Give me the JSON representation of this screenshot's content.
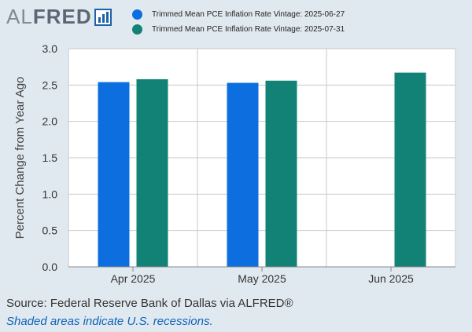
{
  "logo": {
    "text_light": "AL",
    "text_bold": "FRED",
    "icon": "bar-chart-icon"
  },
  "chart_data": {
    "type": "bar",
    "categories": [
      "Apr 2025",
      "May 2025",
      "Jun 2025"
    ],
    "series": [
      {
        "name": "Trimmed Mean PCE Inflation Rate Vintage: 2025-06-27",
        "color": "#0d6ee0",
        "values": [
          2.54,
          2.53,
          null
        ]
      },
      {
        "name": "Trimmed Mean PCE Inflation Rate Vintage: 2025-07-31",
        "color": "#138276",
        "values": [
          2.58,
          2.56,
          2.67
        ]
      }
    ],
    "title": "",
    "xlabel": "",
    "ylabel": "Percent Change from Year Ago",
    "ylim": [
      0,
      3.0
    ],
    "yticks": [
      "0.0",
      "0.5",
      "1.0",
      "1.5",
      "2.0",
      "2.5",
      "3.0"
    ],
    "grid": true,
    "legend_position": "top"
  },
  "footer": {
    "source": "Source: Federal Reserve Bank of Dallas via ALFRED®",
    "note": "Shaded areas indicate U.S. recessions."
  }
}
